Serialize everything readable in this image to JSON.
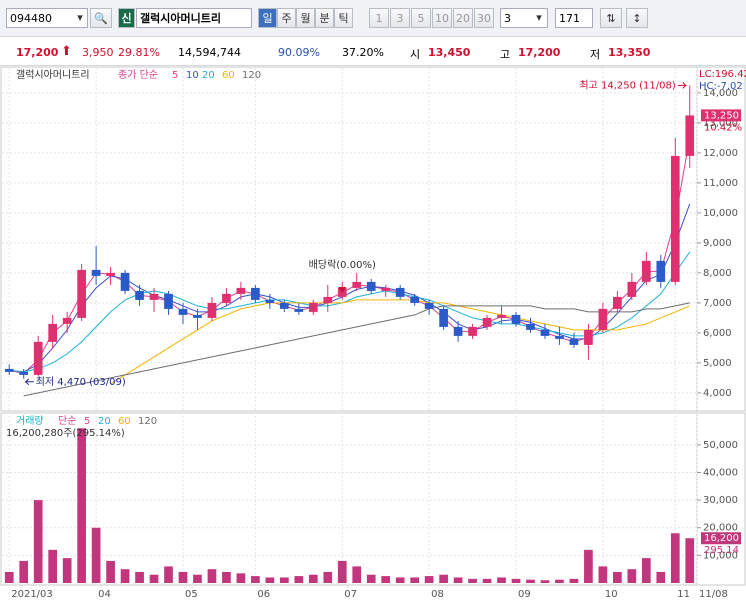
{
  "toolbar": {
    "code": "094480",
    "badge": "신",
    "name": "갤럭시아머니트리",
    "periods": [
      "일",
      "주",
      "월",
      "분",
      "틱"
    ],
    "intervals": [
      "1",
      "3",
      "5",
      "10",
      "20",
      "30"
    ],
    "select": "3",
    "count": "171"
  },
  "info": {
    "price": "17,200",
    "change": "3,950",
    "rate": "29.81%",
    "volume": "14,594,744",
    "turnover": "90.09%",
    "ratio": "37.20%",
    "open_label": "시",
    "open": "13,450",
    "high_label": "고",
    "high": "17,200",
    "low_label": "저",
    "low": "13,350"
  },
  "chart_data": [
    {
      "type": "candlestick",
      "title": "갤럭시아머니트리",
      "ma_label": "종가 단순",
      "grid": true,
      "xlim": [
        -0.5,
        47.5
      ],
      "xticks": [
        {
          "value": 0,
          "label": "2021/03"
        },
        {
          "value": 6,
          "label": "04"
        },
        {
          "value": 12,
          "label": "05"
        },
        {
          "value": 17,
          "label": "06"
        },
        {
          "value": 23,
          "label": "07"
        },
        {
          "value": 29,
          "label": "08"
        },
        {
          "value": 35,
          "label": "09"
        },
        {
          "value": 41,
          "label": "10"
        },
        {
          "value": 46,
          "label": "11"
        },
        {
          "value": 47.5,
          "label": "11/08"
        }
      ],
      "ylim": [
        3430,
        14830
      ],
      "yticks": [
        {
          "value": 4000,
          "label": "4,000"
        },
        {
          "value": 5000,
          "label": "5,000"
        },
        {
          "value": 6000,
          "label": "6,000"
        },
        {
          "value": 7000,
          "label": "7,000"
        },
        {
          "value": 8000,
          "label": "8,000"
        },
        {
          "value": 9000,
          "label": "9,000"
        },
        {
          "value": 10000,
          "label": "10,000"
        },
        {
          "value": 11000,
          "label": "11,000"
        },
        {
          "value": 12000,
          "label": "12,000"
        },
        {
          "value": 13000,
          "label": "13,000"
        },
        {
          "value": 14000,
          "label": "14,000"
        }
      ],
      "up_color": "#e0306f",
      "down_color": "#2a5bc8",
      "open": [
        4800,
        4700,
        4600,
        5700,
        6300,
        6500,
        8100,
        7900,
        8000,
        7400,
        7100,
        7300,
        6800,
        6600,
        6500,
        7000,
        7300,
        7500,
        7100,
        7000,
        6800,
        6700,
        7000,
        7200,
        7500,
        7700,
        7400,
        7500,
        7200,
        7000,
        6800,
        6200,
        5900,
        6200,
        6500,
        6600,
        6300,
        6100,
        5900,
        5800,
        5600,
        6100,
        6800,
        7200,
        7700,
        8400,
        7700,
        11900
      ],
      "high": [
        4950,
        4800,
        5900,
        6600,
        6700,
        8300,
        8900,
        8200,
        8100,
        7600,
        7500,
        7400,
        7000,
        6800,
        7200,
        7500,
        7700,
        7600,
        7300,
        7100,
        7000,
        7100,
        7600,
        7700,
        8000,
        7800,
        7600,
        7600,
        7300,
        7100,
        6900,
        6400,
        6300,
        6600,
        6900,
        6700,
        6500,
        6300,
        6200,
        6000,
        6300,
        7000,
        7400,
        8000,
        8700,
        8600,
        12500,
        14250
      ],
      "low": [
        4600,
        4470,
        4550,
        5500,
        6000,
        6400,
        7600,
        7600,
        7300,
        6900,
        6700,
        6600,
        6300,
        6100,
        6400,
        6900,
        7100,
        7000,
        6800,
        6700,
        6600,
        6600,
        6700,
        7100,
        7400,
        7300,
        7200,
        7100,
        6900,
        6600,
        6100,
        5700,
        5800,
        6100,
        6300,
        6200,
        6000,
        5800,
        5600,
        5500,
        5100,
        6000,
        6700,
        7100,
        7600,
        7500,
        7600,
        11500
      ],
      "close": [
        4700,
        4600,
        5700,
        6300,
        6500,
        8100,
        7900,
        8000,
        7400,
        7100,
        7300,
        6800,
        6600,
        6500,
        7000,
        7300,
        7500,
        7100,
        7000,
        6800,
        6700,
        7000,
        7200,
        7500,
        7700,
        7400,
        7500,
        7200,
        7000,
        6800,
        6200,
        5900,
        6200,
        6500,
        6600,
        6300,
        6100,
        5900,
        5800,
        5600,
        6100,
        6800,
        7200,
        7700,
        8400,
        7700,
        11900,
        13250
      ],
      "series": [
        {
          "name": "5",
          "color": "#d9418c",
          "values": [
            4750,
            4650,
            5100,
            6000,
            6400,
            7300,
            8000,
            7950,
            7700,
            7250,
            7200,
            7050,
            6700,
            6550,
            6750,
            7150,
            7400,
            7300,
            7050,
            6900,
            6750,
            6850,
            7100,
            7350,
            7600,
            7550,
            7450,
            7350,
            7100,
            6900,
            6500,
            6050,
            6050,
            6350,
            6550,
            6450,
            6200,
            6000,
            5850,
            5700,
            5850,
            6450,
            7000,
            7450,
            8050,
            8050,
            9800,
            12500
          ]
        },
        {
          "name": "10",
          "color": "#3c4fc6",
          "values": [
            4750,
            4700,
            4950,
            5500,
            6100,
            6900,
            7500,
            7900,
            7800,
            7500,
            7250,
            7100,
            6900,
            6700,
            6700,
            6900,
            7200,
            7300,
            7200,
            7000,
            6850,
            6850,
            7000,
            7200,
            7450,
            7550,
            7500,
            7400,
            7250,
            7000,
            6700,
            6300,
            6100,
            6200,
            6400,
            6450,
            6350,
            6150,
            5950,
            5800,
            5800,
            6150,
            6650,
            7200,
            7750,
            7950,
            9000,
            10300
          ]
        },
        {
          "name": "20",
          "color": "#1bb2d8",
          "values": [
            4750,
            4700,
            4800,
            5000,
            5300,
            5700,
            6200,
            6700,
            7100,
            7300,
            7400,
            7300,
            7100,
            6900,
            6800,
            6800,
            6900,
            7000,
            7100,
            7100,
            7000,
            6900,
            6900,
            7000,
            7200,
            7300,
            7400,
            7300,
            7200,
            7100,
            6900,
            6700,
            6500,
            6400,
            6300,
            6300,
            6200,
            6100,
            6000,
            5900,
            5900,
            6000,
            6200,
            6500,
            6900,
            7300,
            8000,
            8700
          ]
        },
        {
          "name": "60",
          "color": "#f0b400",
          "values": [
            null,
            null,
            null,
            null,
            null,
            null,
            null,
            4300,
            4600,
            4900,
            5200,
            5500,
            5800,
            6100,
            6400,
            6600,
            6800,
            6900,
            7000,
            7000,
            7000,
            7000,
            7000,
            7000,
            7100,
            7100,
            7100,
            7100,
            7100,
            7000,
            7000,
            6900,
            6800,
            6700,
            6600,
            6500,
            6400,
            6300,
            6200,
            6100,
            6100,
            6100,
            6100,
            6200,
            6300,
            6500,
            6700,
            6900
          ]
        },
        {
          "name": "120",
          "color": "#6e6e6e",
          "values": [
            null,
            3900,
            4000,
            4100,
            4200,
            4300,
            4400,
            4500,
            4600,
            4700,
            4800,
            4900,
            5000,
            5100,
            5200,
            5300,
            5400,
            5500,
            5600,
            5700,
            5800,
            5900,
            6000,
            6100,
            6200,
            6300,
            6400,
            6500,
            6600,
            6800,
            6900,
            6900,
            6900,
            6900,
            6900,
            6900,
            6900,
            6800,
            6800,
            6800,
            6700,
            6700,
            6700,
            6700,
            6800,
            6800,
            6900,
            7000
          ]
        }
      ],
      "annotations": {
        "high": "최고 14,250 (11/08)",
        "low": "최저 4,470 (03/09)",
        "ex_dividend": "배당락(0.00%)",
        "lc": "LC:196.42",
        "hc": "HC:-7.02",
        "price_tag": "13,250",
        "rate_tag": "10.42%"
      }
    },
    {
      "type": "bar",
      "title": "거래량",
      "ma_label": "단순",
      "legend": [
        {
          "name": "5",
          "color": "#d9418c"
        },
        {
          "name": "20",
          "color": "#1bb2d8"
        },
        {
          "name": "60",
          "color": "#f0b400"
        },
        {
          "name": "120",
          "color": "#6e6e6e"
        }
      ],
      "subtitle": "16,200,280주(295.14%)",
      "color": "#c2367d",
      "xlim": [
        -0.5,
        47.5
      ],
      "ylim": [
        0,
        59000
      ],
      "yticks": [
        {
          "value": 10000,
          "label": "10,000"
        },
        {
          "value": 20000,
          "label": "20,000"
        },
        {
          "value": 30000,
          "label": "30,000"
        },
        {
          "value": 40000,
          "label": "40,000"
        },
        {
          "value": 50000,
          "label": "50,000"
        }
      ],
      "values": [
        4000,
        8000,
        30000,
        12000,
        9000,
        56000,
        20000,
        8000,
        5000,
        4000,
        3000,
        6000,
        4000,
        3000,
        5000,
        4000,
        3500,
        2500,
        2000,
        2000,
        2500,
        3000,
        4000,
        8000,
        6000,
        3000,
        2500,
        2000,
        2000,
        2500,
        3000,
        2000,
        1500,
        1500,
        2000,
        1500,
        1200,
        1000,
        1200,
        1500,
        12000,
        6000,
        4000,
        5000,
        9000,
        4000,
        18000,
        16200
      ],
      "annotations": {
        "volume_tag": "16,200",
        "rate_tag": "295.14"
      }
    }
  ]
}
